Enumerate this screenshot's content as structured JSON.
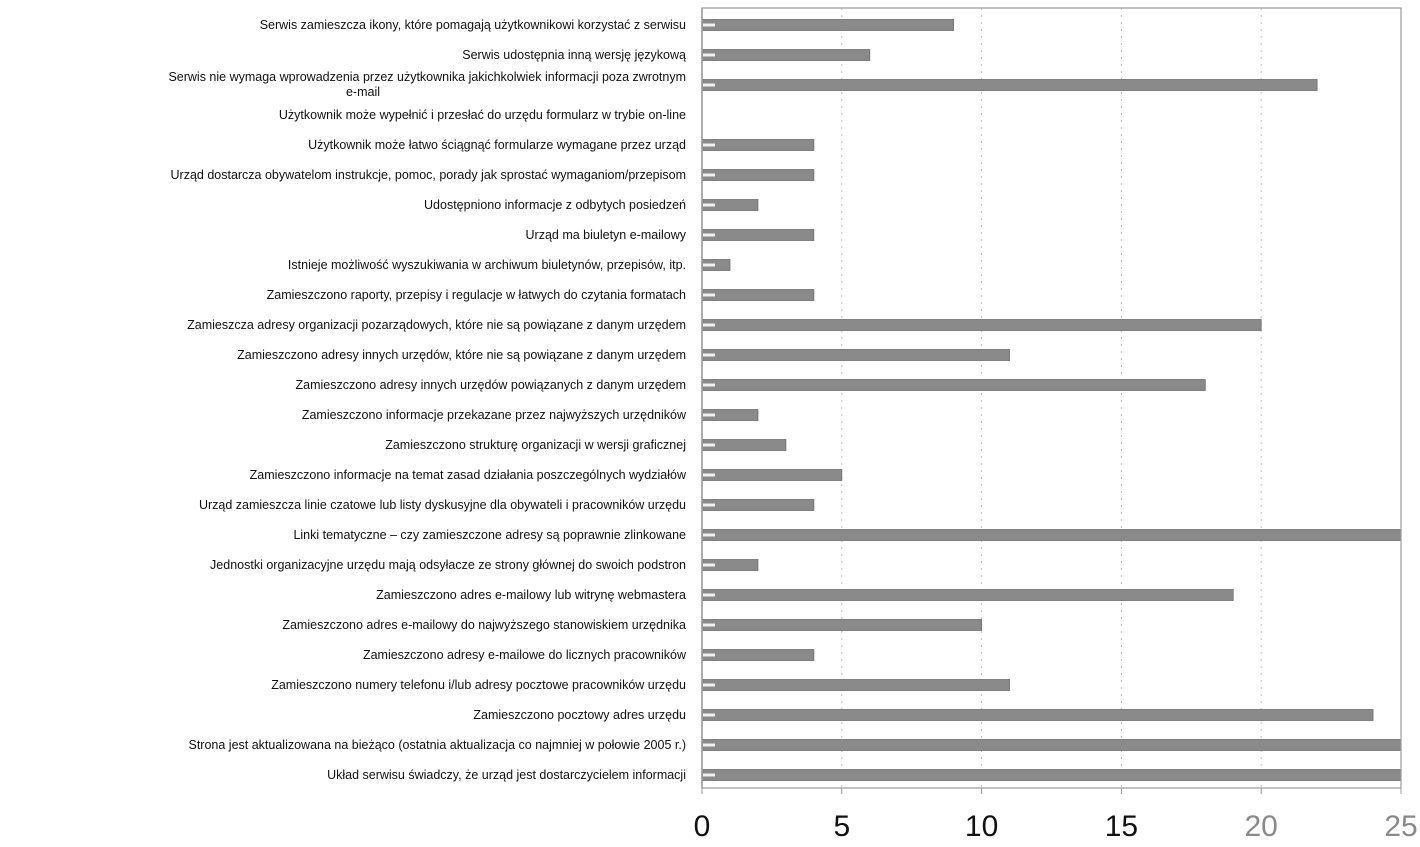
{
  "chart_data": {
    "type": "bar",
    "orientation": "horizontal",
    "categories": [
      "Serwis zamieszcza ikony, które pomagają użytkownikowi korzystać z serwisu",
      "Serwis udostępnia inną wersję językową",
      "Serwis nie wymaga wprowadzenia przez użytkownika jakichkolwiek informacji poza zwrotnym e-mail",
      "Użytkownik może wypełnić i przesłać do urzędu formularz w trybie on-line",
      "Użytkownik może łatwo ściągnąć formularze wymagane przez urząd",
      "Urząd dostarcza obywatelom instrukcje, pomoc, porady jak sprostać wymaganiom/przepisom",
      "Udostępniono informacje z odbytych posiedzeń",
      "Urząd ma biuletyn e-mailowy",
      "Istnieje możliwość wyszukiwania w archiwum biuletynów, przepisów, itp.",
      "Zamieszczono raporty, przepisy i regulacje w łatwych do czytania formatach",
      "Zamieszcza adresy organizacji pozarządowych, które nie są powiązane z danym urzędem",
      "Zamieszczono adresy innych urzędów, które nie są powiązane z danym urzędem",
      "Zamieszczono adresy innych urzędów powiązanych z danym urzędem",
      "Zamieszczono informacje przekazane przez najwyższych urzędników",
      "Zamieszczono strukturę organizacji w wersji graficznej",
      "Zamieszczono informacje na temat zasad działania poszczególnych wydziałów",
      "Urząd zamieszcza linie czatowe lub listy dyskusyjne dla obywateli i pracowników urzędu",
      "Linki tematyczne – czy zamieszczone adresy są poprawnie zlinkowane",
      "Jednostki organizacyjne urzędu mają odsyłacze ze strony głównej do swoich podstron",
      "Zamieszczono adres e-mailowy lub witrynę webmastera",
      "Zamieszczono adres e-mailowy do najwyższego stanowiskiem urzędnika",
      "Zamieszczono adresy e-mailowe do licznych pracowników",
      "Zamieszczono numery telefonu i/lub adresy pocztowe pracowników urzędu",
      "Zamieszczono pocztowy adres urzędu",
      "Strona jest aktualizowana na bieżąco (ostatnia aktualizacja co najmniej w połowie 2005 r.)",
      "Układ serwisu świadczy, że urząd jest dostarczycielem informacji"
    ],
    "values": [
      9,
      6,
      22,
      0,
      4,
      4,
      2,
      4,
      1,
      4,
      20,
      11,
      18,
      2,
      3,
      5,
      4,
      25,
      2,
      19,
      10,
      4,
      11,
      24,
      25,
      25
    ],
    "xlim": [
      0,
      25
    ],
    "xticks": [
      "0",
      "5",
      "10",
      "15",
      "20",
      "25"
    ],
    "grid": "vertical dotted",
    "colors": {
      "bar": "#8a8a8a",
      "bar_edge": "#6f6f6f",
      "grid": "#bdbdbd",
      "axis": "#9a9a9a",
      "tick_dark": "#111111",
      "tick_light": "#8a8a8a"
    }
  }
}
